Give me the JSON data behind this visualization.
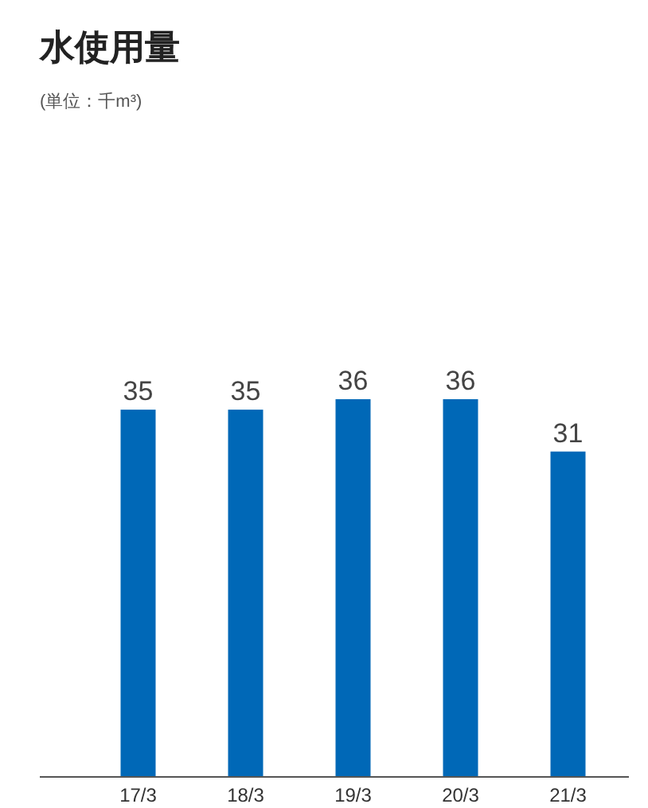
{
  "chart_data": {
    "type": "bar",
    "title": "水使用量",
    "subtitle": "(単位：千m³)",
    "categories": [
      "17/3",
      "18/3",
      "19/3",
      "20/3",
      "21/3"
    ],
    "values": [
      35,
      35,
      36,
      36,
      31
    ],
    "color": "#0068b7",
    "data_labels": true
  }
}
